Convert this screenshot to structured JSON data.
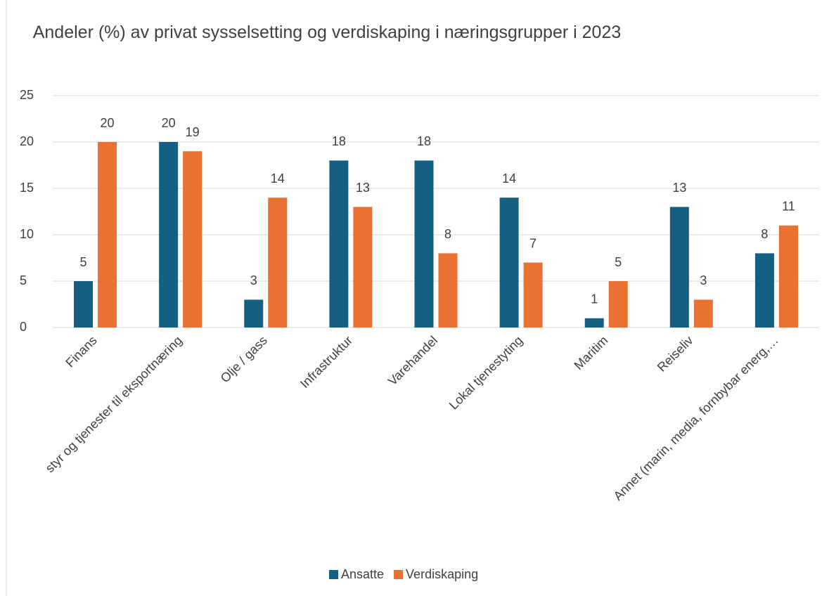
{
  "chart_data": {
    "type": "bar",
    "title": "Andeler (%) av privat sysselsetting og verdiskaping i næringsgrupper i 2023",
    "categories": [
      "Finans",
      "styr og tjenester til eksportnæring",
      "Olje / gass",
      "Infrastruktur",
      "Varehandel",
      "Lokal tjenestyting",
      "Maritim",
      "Reiseliv",
      "Annet (marin, media, fornbybar energ,…"
    ],
    "series": [
      {
        "name": "Ansatte",
        "color": "#156082",
        "values": [
          5,
          20,
          3,
          18,
          18,
          14,
          1,
          13,
          8
        ]
      },
      {
        "name": "Verdiskaping",
        "color": "#e97132",
        "values": [
          20,
          19,
          14,
          13,
          8,
          7,
          5,
          3,
          11
        ]
      }
    ],
    "ylim": [
      0,
      25
    ],
    "yticks": [
      0,
      5,
      10,
      15,
      20,
      25
    ],
    "grid": true,
    "legend": "bottom"
  }
}
